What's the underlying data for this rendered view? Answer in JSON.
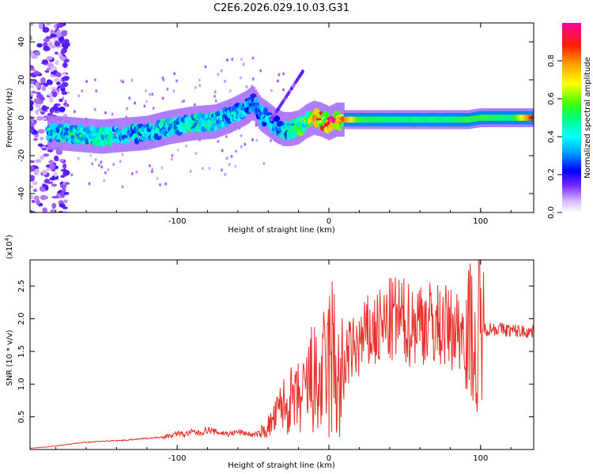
{
  "title": "C2E6.2026.029.10.03.G31",
  "colors": {
    "line": "#e8302a",
    "frame": "#000000",
    "background": "#ffffff"
  },
  "chart_data": [
    {
      "type": "heatmap",
      "xlabel": "Height of straight line (km)",
      "ylabel": "Frequency (Hz)",
      "xlim": [
        -197,
        135
      ],
      "ylim": [
        -50,
        50
      ],
      "x_ticks": [
        -100,
        0,
        100
      ],
      "x_tick_labels": [
        "-100",
        "0",
        "100"
      ],
      "y_ticks": [
        -40,
        -20,
        0,
        20,
        40
      ],
      "y_tick_labels": [
        "-40",
        "-20",
        "0",
        "20",
        "40"
      ],
      "colorbar": {
        "label": "Normalized spectral amplitude",
        "range": [
          0,
          1
        ],
        "ticks": [
          0.0,
          0.2,
          0.4,
          0.6,
          0.8
        ],
        "tick_labels": [
          "0.0",
          "0.2",
          "0.4",
          "0.6",
          "0.8"
        ]
      },
      "ridge": {
        "x": [
          -180,
          -165,
          -150,
          -135,
          -120,
          -105,
          -90,
          -75,
          -65,
          -55,
          -50,
          -45,
          -40,
          -35,
          -30,
          -25,
          -20,
          -15,
          -10,
          -5,
          0,
          5,
          10,
          20,
          40,
          60,
          80,
          92,
          100,
          120,
          135
        ],
        "frequency": [
          -8,
          -9,
          -10,
          -9,
          -8,
          -5,
          -3,
          -2,
          1,
          5,
          8,
          2,
          -1,
          -4,
          -6,
          -6,
          -5,
          -2,
          0,
          -1,
          -3,
          -1,
          -1,
          -1,
          -1,
          -1,
          -1,
          -1,
          0,
          0,
          0
        ],
        "amplitude": [
          0.4,
          0.45,
          0.45,
          0.4,
          0.4,
          0.4,
          0.45,
          0.4,
          0.4,
          0.35,
          0.3,
          0.35,
          0.35,
          0.35,
          0.4,
          0.45,
          0.5,
          0.55,
          0.7,
          0.8,
          0.85,
          0.9,
          0.8,
          0.55,
          0.5,
          0.5,
          0.5,
          0.55,
          0.55,
          0.5,
          0.9
        ]
      }
    },
    {
      "type": "line",
      "xlabel": "Height of straight line (km)",
      "ylabel": "SNR (10 * v/v)",
      "y_multiplier_label": "(x10",
      "y_multiplier_exp": "4",
      "y_multiplier_close": ")",
      "xlim": [
        -197,
        135
      ],
      "ylim": [
        0,
        2.9
      ],
      "x_ticks": [
        -100,
        0,
        100
      ],
      "x_tick_labels": [
        "-100",
        "0",
        "100"
      ],
      "y_ticks": [
        0.5,
        1.0,
        1.5,
        2.0,
        2.5
      ],
      "y_tick_labels": [
        "0.5",
        "1.0",
        "1.5",
        "2.0",
        "2.5"
      ],
      "series": [
        {
          "name": "SNR",
          "color": "#e8302a",
          "x": [
            -197,
            -185,
            -175,
            -165,
            -155,
            -145,
            -135,
            -125,
            -115,
            -105,
            -100,
            -95,
            -90,
            -85,
            -80,
            -75,
            -70,
            -65,
            -60,
            -55,
            -50,
            -45,
            -42,
            -38,
            -35,
            -32,
            -30,
            -28,
            -25,
            -22,
            -20,
            -18,
            -15,
            -12,
            -10,
            -8,
            -5,
            -2,
            0,
            3,
            5,
            8,
            10,
            12,
            15,
            20,
            25,
            30,
            35,
            40,
            45,
            50,
            55,
            60,
            65,
            70,
            75,
            80,
            85,
            90,
            95,
            97,
            98,
            99,
            100,
            102,
            105,
            110,
            120,
            135
          ],
          "values": [
            0.02,
            0.04,
            0.07,
            0.1,
            0.12,
            0.13,
            0.14,
            0.16,
            0.18,
            0.21,
            0.25,
            0.23,
            0.27,
            0.25,
            0.3,
            0.27,
            0.25,
            0.24,
            0.27,
            0.25,
            0.22,
            0.25,
            0.3,
            0.4,
            0.5,
            0.65,
            0.7,
            0.6,
            0.75,
            0.7,
            0.8,
            0.7,
            0.9,
            1.05,
            1.1,
            0.9,
            1.0,
            1.2,
            1.3,
            1.4,
            1.2,
            0.8,
            1.3,
            1.45,
            1.5,
            1.6,
            1.75,
            1.8,
            1.85,
            1.95,
            2.0,
            1.95,
            1.9,
            2.0,
            1.95,
            1.9,
            1.9,
            1.85,
            1.85,
            1.8,
            1.85,
            1.2,
            0.4,
            2.8,
            1.85,
            1.85,
            1.85,
            1.85,
            1.82,
            1.8
          ]
        }
      ]
    }
  ]
}
